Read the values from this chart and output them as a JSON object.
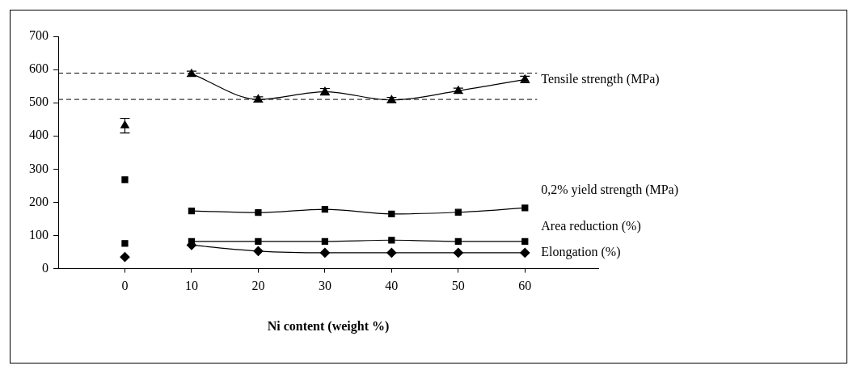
{
  "chart_data": {
    "type": "line",
    "xlabel": "Ni content (weight %)",
    "xlim": [
      -10,
      71
    ],
    "xticks": [
      0,
      10,
      20,
      30,
      40,
      50,
      60
    ],
    "ylim": [
      0,
      700
    ],
    "yticks": [
      0,
      100,
      200,
      300,
      400,
      500,
      600,
      700
    ],
    "legend": false,
    "grid": false,
    "line_style": "solid",
    "ref_lines": [
      {
        "axis": "y",
        "value": 589,
        "line_style": "dashed",
        "color": "#000000"
      },
      {
        "axis": "y",
        "value": 510,
        "line_style": "dashed",
        "color": "#000000"
      }
    ],
    "series": [
      {
        "name": "Tensile strength (MPa)",
        "marker": "triangle",
        "color": "#000000",
        "x": [
          10,
          20,
          30,
          40,
          50,
          60
        ],
        "values": [
          587,
          510,
          533,
          508,
          536,
          570
        ],
        "errors": [
          8,
          8,
          10,
          8,
          8,
          10
        ]
      },
      {
        "marker": "triangle",
        "color": "#000000",
        "x": [
          0
        ],
        "values": [
          431
        ],
        "errors": [
          22
        ]
      },
      {
        "name": "0,2% yield strength (MPa)",
        "marker": "square",
        "color": "#000000",
        "x": [
          10,
          20,
          30,
          40,
          50,
          60
        ],
        "values": [
          174,
          169,
          179,
          165,
          170,
          183
        ]
      },
      {
        "marker": "square",
        "color": "#000000",
        "x": [
          0
        ],
        "values": [
          268
        ]
      },
      {
        "name": "Area reduction (%)",
        "marker": "square",
        "color": "#000000",
        "x": [
          10,
          20,
          30,
          40,
          50,
          60
        ],
        "values": [
          82,
          82,
          82,
          86,
          82,
          82
        ]
      },
      {
        "marker": "square",
        "color": "#000000",
        "x": [
          0
        ],
        "values": [
          76
        ]
      },
      {
        "name": "Elongation (%)",
        "marker": "diamond",
        "color": "#000000",
        "x": [
          10,
          20,
          30,
          40,
          50,
          60
        ],
        "values": [
          71,
          53,
          48,
          48,
          48,
          48
        ]
      },
      {
        "marker": "diamond",
        "color": "#000000",
        "x": [
          0
        ],
        "values": [
          35
        ]
      }
    ]
  }
}
